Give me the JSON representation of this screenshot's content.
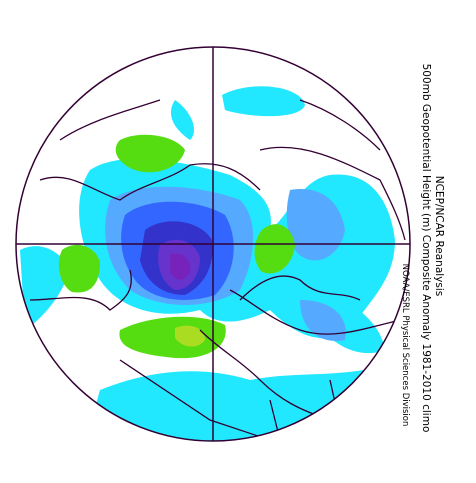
{
  "header": {
    "source": "NCEP/NCAR Reanalysis",
    "title": "500mb Geopotential Height (m) Composite Anomaly 1981-2010 climo",
    "credit": "NOAA/ESRL Physical Sciences Division"
  }
}
